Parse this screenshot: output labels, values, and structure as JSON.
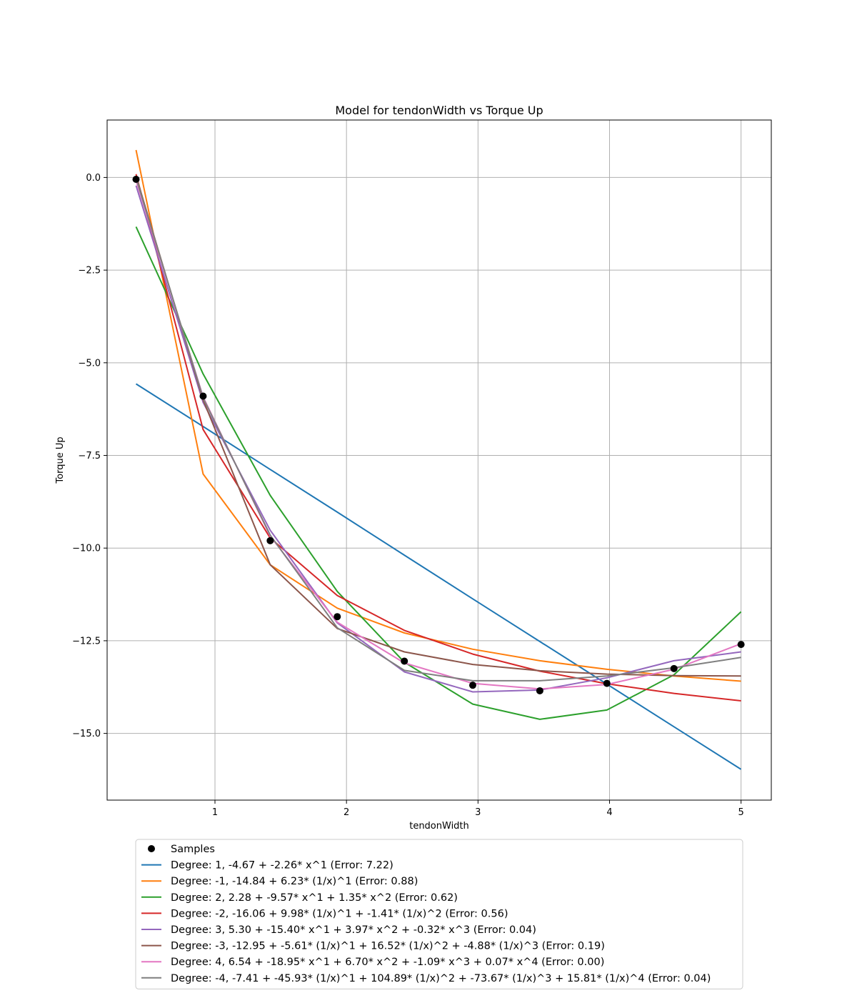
{
  "chart_data": {
    "type": "line",
    "title": "Model for tendonWidth vs Torque Up",
    "xlabel": "tendonWidth",
    "ylabel": "Torque Up",
    "xlim": [
      0.18,
      5.23
    ],
    "ylim": [
      -16.8,
      1.55
    ],
    "grid": true,
    "legend_position": "below",
    "x_ticks": [
      1,
      2,
      3,
      4,
      5
    ],
    "x_tick_labels": [
      "1",
      "2",
      "3",
      "4",
      "5"
    ],
    "y_ticks": [
      0.0,
      -2.5,
      -5.0,
      -7.5,
      -10.0,
      -12.5,
      -15.0
    ],
    "y_tick_labels": [
      "0.0",
      "−2.5",
      "−5.0",
      "−7.5",
      "−10.0",
      "−12.5",
      "−15.0"
    ],
    "x": [
      0.4,
      0.91,
      1.42,
      1.93,
      2.44,
      2.96,
      3.47,
      3.98,
      4.49,
      5.0
    ],
    "samples": {
      "name": "Samples",
      "color": "#000000",
      "y": [
        -0.05,
        -5.9,
        -9.8,
        -11.85,
        -13.05,
        -13.7,
        -13.85,
        -13.65,
        -13.25,
        -12.6
      ]
    },
    "series": [
      {
        "name": "Degree: 1, -4.67 + -2.26* x^1 (Error: 7.22)",
        "color": "#1f77b4",
        "values": [
          -5.57,
          -6.72,
          -7.88,
          -9.03,
          -10.19,
          -11.37,
          -12.52,
          -13.67,
          -14.82,
          -15.97
        ]
      },
      {
        "name": "Degree: -1, -14.84 + 6.23* (1/x)^1 (Error: 0.88)",
        "color": "#ff7f0e",
        "values": [
          0.74,
          -8.0,
          -10.45,
          -11.62,
          -12.29,
          -12.73,
          -13.04,
          -13.27,
          -13.45,
          -13.59
        ]
      },
      {
        "name": "Degree: 2, 2.28 + -9.57* x^1 + 1.35* x^2 (Error: 0.62)",
        "color": "#2ca02c",
        "values": [
          -1.33,
          -5.3,
          -8.58,
          -11.17,
          -13.08,
          -14.21,
          -14.62,
          -14.37,
          -13.42,
          -11.72
        ]
      },
      {
        "name": "Degree: -2, -16.06 + 9.98* (1/x)^1 + -1.41* (1/x)^2 (Error: 0.56)",
        "color": "#d62728",
        "values": [
          0.09,
          -6.8,
          -9.73,
          -11.28,
          -12.22,
          -12.86,
          -13.32,
          -13.66,
          -13.92,
          -14.12
        ]
      },
      {
        "name": "Degree: 3, 5.30 + -15.40* x^1 + 3.97* x^2 + -0.32* x^3 (Error: 0.04)",
        "color": "#9467bd",
        "values": [
          -0.22,
          -6.07,
          -9.52,
          -12.02,
          -13.34,
          -13.88,
          -13.83,
          -13.5,
          -13.04,
          -12.8
        ]
      },
      {
        "name": "Degree: -3, -12.95 + -5.61* (1/x)^1 + 16.52* (1/x)^2 + -4.88* (1/x)^3 (Error: 0.19)",
        "color": "#8c564b",
        "values": [
          0.04,
          -6.0,
          -10.45,
          -12.17,
          -12.8,
          -13.14,
          -13.31,
          -13.4,
          -13.44,
          -13.45
        ]
      },
      {
        "name": "Degree: 4, 6.54 + -18.95* x^1 + 6.70* x^2 + -1.09* x^3 + 0.07* x^4 (Error: 0.00)",
        "color": "#e377c2",
        "values": [
          -0.08,
          -5.92,
          -9.68,
          -12.0,
          -13.1,
          -13.65,
          -13.8,
          -13.68,
          -13.27,
          -12.58
        ]
      },
      {
        "name": "Degree: -4, -7.41 + -45.93* (1/x)^1 + 104.89* (1/x)^2 + -73.67* (1/x)^3 + 15.81* (1/x)^4 (Error: 0.04)",
        "color": "#7f7f7f",
        "values": [
          -0.01,
          -5.95,
          -9.65,
          -12.15,
          -13.3,
          -13.58,
          -13.58,
          -13.45,
          -13.23,
          -12.95
        ]
      }
    ]
  }
}
